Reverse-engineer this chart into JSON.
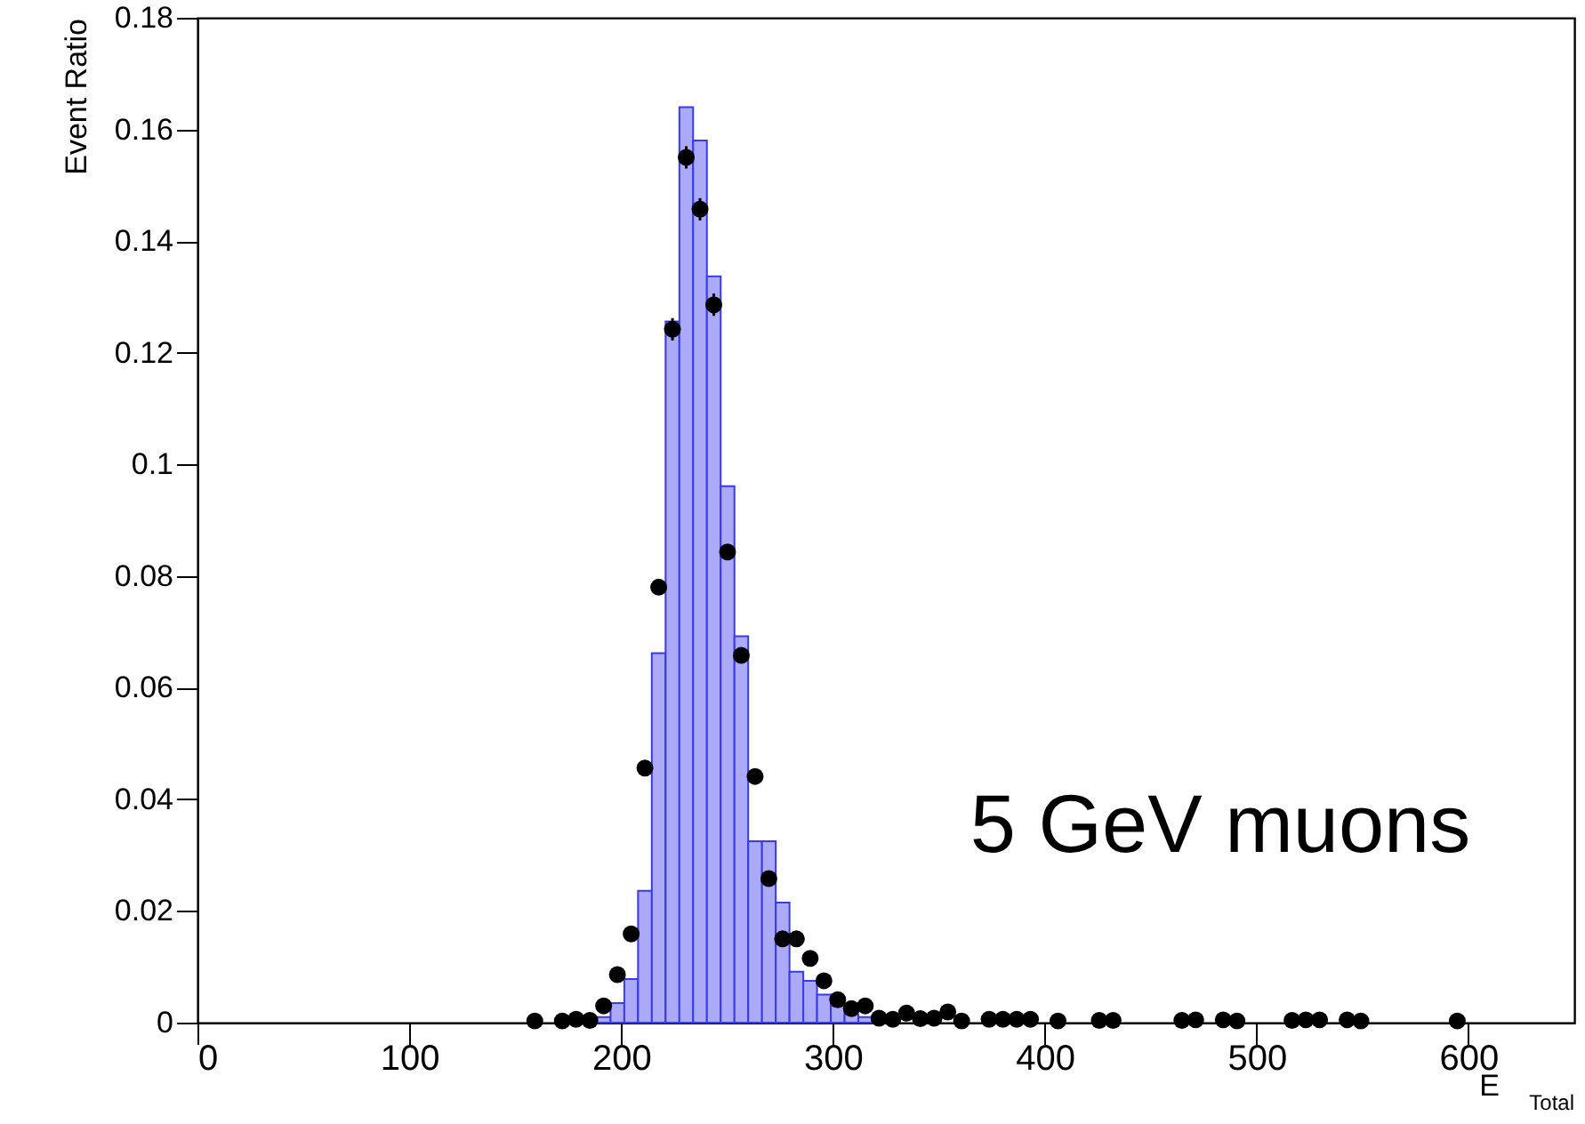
{
  "chart_data": {
    "type": "histogram",
    "xlabel": "E$_{Total}$",
    "ylabel": "Event Ratio",
    "annotations": [
      "5 GeV muons"
    ],
    "bins": [
      0,
      6.5,
      13,
      19.5,
      26,
      32.5,
      39,
      45.5,
      52,
      58.5,
      65,
      71.5,
      78,
      84.5,
      91,
      97.5,
      104,
      110.5,
      117,
      123.5,
      130,
      136.5,
      143,
      149.5,
      156,
      162.5,
      169,
      175.5,
      182,
      188.5,
      195,
      201.5,
      208,
      214.5,
      221,
      227.5,
      234,
      240.5,
      247,
      253.5,
      260,
      266.5,
      273,
      279.5,
      286,
      292.5,
      299,
      305.5,
      312,
      318.5,
      325,
      331.5,
      338,
      344.5,
      351,
      357.5,
      364,
      370.5,
      377,
      383.5,
      390,
      396.5,
      403,
      409.5,
      416,
      422.5,
      429,
      435.5,
      442,
      448.5,
      455,
      461.5,
      468,
      474.5,
      481,
      487.5,
      494,
      500.5,
      507,
      513.5,
      520,
      526.5,
      533,
      539.5,
      546,
      552.5,
      559,
      565.5,
      572,
      578.5,
      585,
      591.5,
      598,
      604.5,
      611,
      617.5,
      624,
      630.5,
      637,
      643.5,
      650
    ],
    "xlim": [
      0,
      650
    ],
    "xticks": [
      0,
      100,
      200,
      300,
      400,
      500,
      600
    ],
    "ylim": [
      0,
      0.18
    ],
    "yticks": [
      0,
      0.02,
      0.04,
      0.06,
      0.08,
      0.1,
      0.12,
      0.14,
      0.16,
      0.18
    ],
    "grid": false,
    "series": [
      {
        "color": "#aaaaf8",
        "values": [
          0,
          0,
          0,
          0,
          0,
          0,
          0,
          0,
          0,
          0,
          0,
          0,
          0,
          0,
          0,
          0,
          0,
          0,
          0,
          0,
          0,
          0,
          0,
          0,
          0,
          0,
          0,
          0,
          0,
          0.001,
          0.0035,
          0.0078,
          0.0236,
          0.0662,
          0.1256,
          0.164,
          0.158,
          0.1337,
          0.0961,
          0.0692,
          0.0325,
          0.0325,
          0.0215,
          0.0091,
          0.0075,
          0.005,
          0.003,
          0.0015,
          0.001,
          0,
          0,
          0,
          0,
          0,
          0,
          0,
          0,
          0,
          0,
          0,
          0,
          0,
          0,
          0,
          0,
          0,
          0,
          0,
          0,
          0,
          0,
          0,
          0,
          0,
          0,
          0,
          0,
          0,
          0,
          0,
          0,
          0,
          0,
          0,
          0,
          0,
          0,
          0,
          0,
          0,
          0,
          0,
          0,
          0,
          0,
          0,
          0,
          0,
          0,
          0
        ]
      },
      {
        "type": "scatter",
        "color": "#000000",
        "marker": "circle",
        "x": [
          159.25,
          172.25,
          178.75,
          185.25,
          191.75,
          198.25,
          204.75,
          211.25,
          217.75,
          224.25,
          230.75,
          237.25,
          243.75,
          250.25,
          256.75,
          263.25,
          269.75,
          276.25,
          282.75,
          289.25,
          295.75,
          302.25,
          308.75,
          315.25,
          321.75,
          328.25,
          334.75,
          341.25,
          347.75,
          354.25,
          360.75,
          373.75,
          380.25,
          386.75,
          393.25,
          406.25,
          425.75,
          432.25,
          464.75,
          471.25,
          484.25,
          490.75,
          516.75,
          523.25,
          529.75,
          542.75,
          549.25,
          594.75
        ],
        "values": [
          0.0003,
          0.0003,
          0.0006,
          0.0004,
          0.003,
          0.0086,
          0.0159,
          0.0456,
          0.078,
          0.1242,
          0.155,
          0.1457,
          0.1286,
          0.0843,
          0.0658,
          0.0441,
          0.0258,
          0.015,
          0.015,
          0.0115,
          0.0075,
          0.0041,
          0.0025,
          0.003,
          0.0008,
          0.0006,
          0.0017,
          0.0007,
          0.0008,
          0.0019,
          0.0003,
          0.0006,
          0.0006,
          0.0006,
          0.0006,
          0.0003,
          0.0004,
          0.0004,
          0.0004,
          0.0005,
          0.0005,
          0.0003,
          0.0004,
          0.0005,
          0.0005,
          0.0005,
          0.0003,
          0.0003
        ],
        "errors": [
          null,
          null,
          null,
          null,
          null,
          null,
          null,
          null,
          null,
          0.002,
          0.002,
          0.002,
          0.002,
          null,
          null,
          null,
          null,
          null,
          null,
          null,
          null,
          null,
          null,
          null,
          null,
          null,
          null,
          null,
          null,
          null,
          null,
          null,
          null,
          null,
          null,
          null,
          null,
          null,
          null,
          null,
          null,
          null,
          null,
          null,
          null,
          null,
          null,
          null
        ]
      }
    ]
  }
}
